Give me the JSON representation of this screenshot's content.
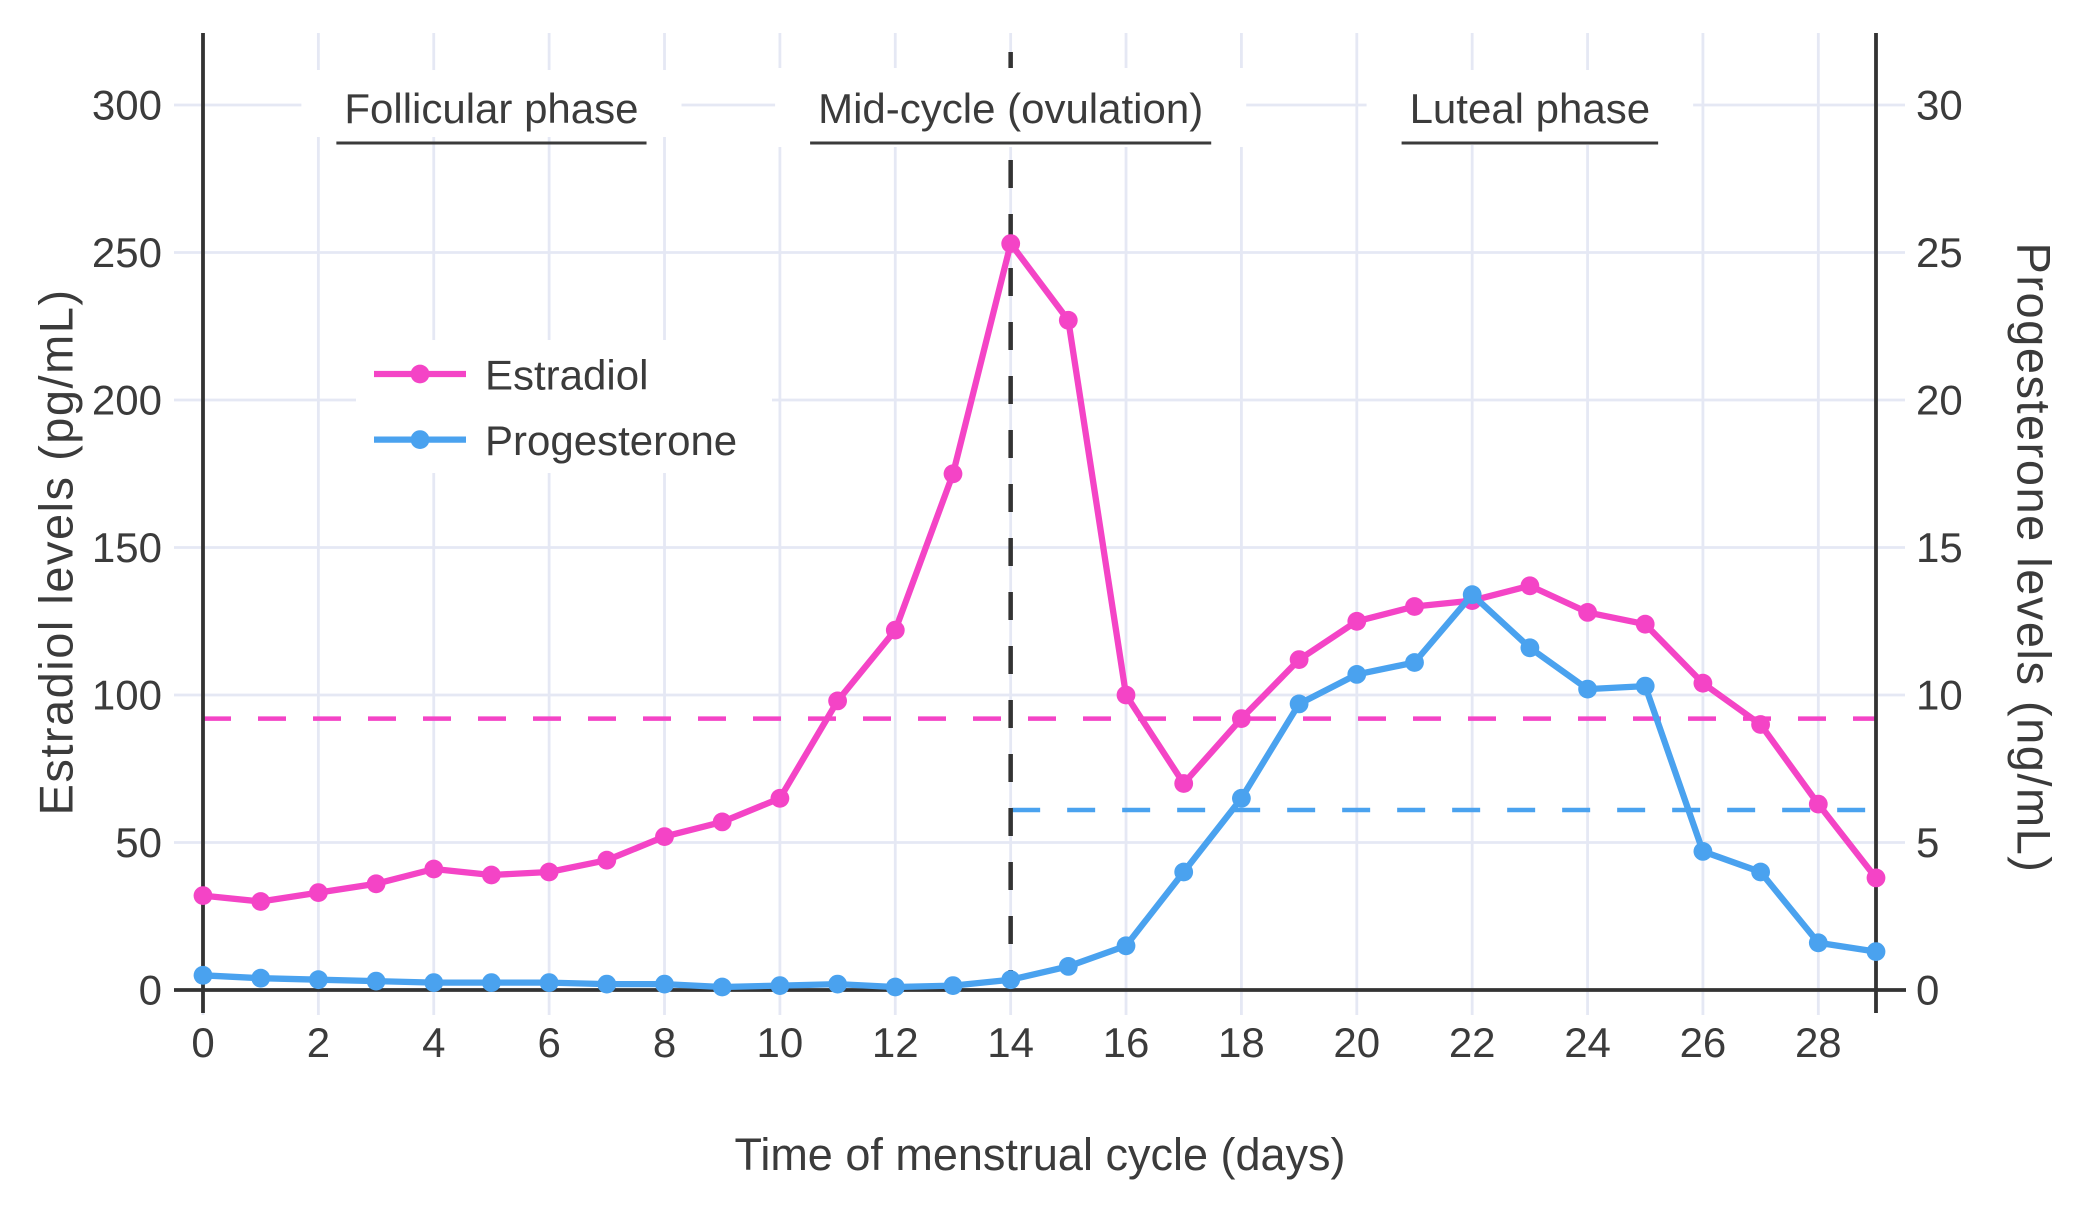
{
  "chart_data": {
    "type": "line",
    "title": "",
    "xlabel": "Time of menstrual cycle (days)",
    "x": [
      0,
      1,
      2,
      3,
      4,
      5,
      6,
      7,
      8,
      9,
      10,
      11,
      12,
      13,
      14,
      15,
      16,
      17,
      18,
      19,
      20,
      21,
      22,
      23,
      24,
      25,
      26,
      27,
      28,
      29
    ],
    "x_tick_values": [
      0,
      2,
      4,
      6,
      8,
      10,
      12,
      14,
      16,
      18,
      20,
      22,
      24,
      26,
      28
    ],
    "x_range": [
      0,
      29
    ],
    "y_left": {
      "label": "Estradiol levels (pg/mL)",
      "tick_values": [
        0,
        50,
        100,
        150,
        200,
        250,
        300
      ],
      "range": [
        0,
        325
      ]
    },
    "y_right": {
      "label": "Progesterone levels (ng/mL)",
      "tick_values": [
        0,
        5,
        10,
        15,
        20,
        25,
        30
      ],
      "range": [
        0,
        32.5
      ]
    },
    "series": [
      {
        "name": "Estradiol",
        "axis": "left",
        "unit": "pg/mL",
        "color": "#f444c6",
        "values": [
          32,
          30,
          33,
          36,
          41,
          39,
          40,
          44,
          52,
          57,
          65,
          98,
          122,
          175,
          253,
          227,
          100,
          70,
          92,
          112,
          125,
          130,
          132,
          137,
          128,
          124,
          104,
          90,
          63,
          38
        ]
      },
      {
        "name": "Progesterone",
        "axis": "right",
        "unit": "ng/mL",
        "color": "#4aa2ef",
        "values": [
          0.5,
          0.4,
          0.35,
          0.3,
          0.25,
          0.25,
          0.25,
          0.2,
          0.2,
          0.1,
          0.15,
          0.2,
          0.1,
          0.15,
          0.35,
          0.8,
          1.5,
          4.0,
          6.5,
          9.7,
          10.7,
          11.1,
          13.4,
          11.6,
          10.2,
          10.3,
          4.7,
          4.0,
          1.6,
          1.3
        ]
      }
    ],
    "reference_lines": [
      {
        "name": "estradiol-mean",
        "axis": "left",
        "value": 92,
        "color": "#f444c6",
        "style": "dashed",
        "from_day": 0,
        "to_day": 29
      },
      {
        "name": "progesterone-mean",
        "axis": "right",
        "value": 6.1,
        "color": "#4aa2ef",
        "style": "dashed",
        "from_day": 14,
        "to_day": 29
      },
      {
        "name": "ovulation-day",
        "axis": "x",
        "value": 14,
        "color": "#333333",
        "style": "dashed"
      }
    ],
    "annotations": [
      {
        "label": "Follicular phase",
        "center_day": 5,
        "underline": true
      },
      {
        "label": "Mid-cycle (ovulation)",
        "center_day": 14,
        "underline": true
      },
      {
        "label": "Luteal phase",
        "center_day": 23,
        "underline": true
      }
    ],
    "legend": {
      "entries": [
        "Estradiol",
        "Progesterone"
      ],
      "position": "inside top-left"
    },
    "grid": true,
    "legend_position": "inside"
  },
  "colors": {
    "estradiol": "#f444c6",
    "progesterone": "#4aa2ef",
    "axis": "#333333",
    "grid": "#e5e8f4",
    "text": "#3b3b3b",
    "background": "#ffffff"
  }
}
